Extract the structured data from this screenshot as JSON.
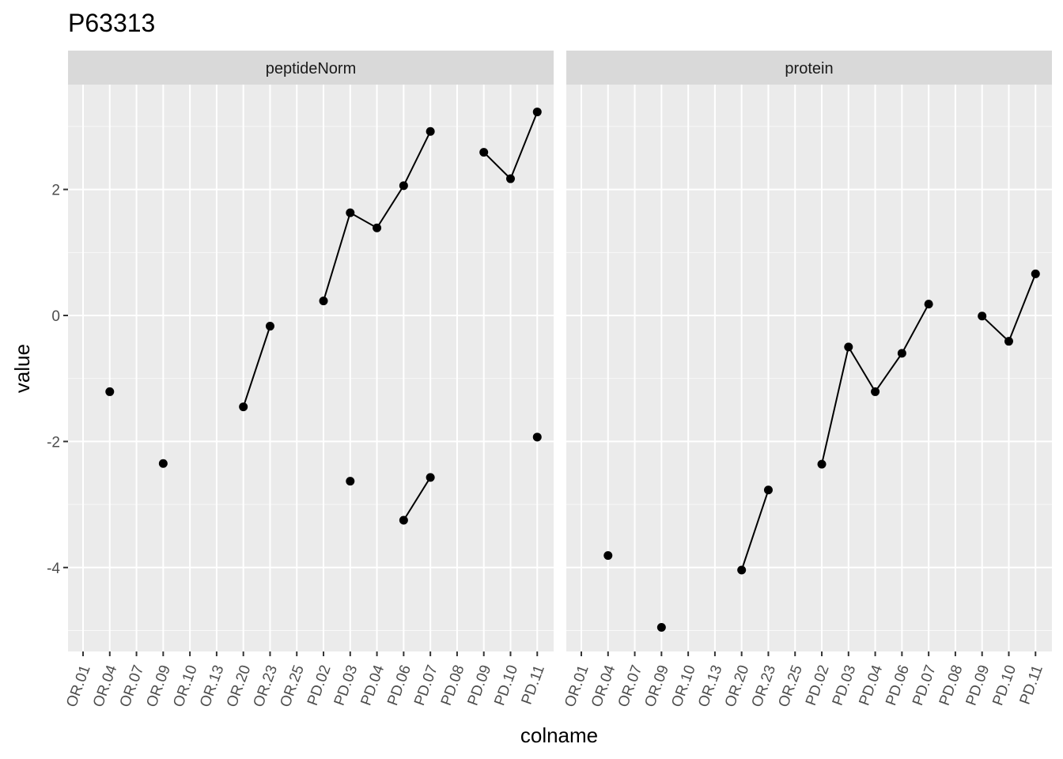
{
  "chart_data": {
    "type": "line",
    "title": "P63313",
    "xlabel": "colname",
    "ylabel": "value",
    "ylim": [
      -5.3,
      3.7
    ],
    "y_ticks": [
      -4,
      -2,
      0,
      2
    ],
    "y_tick_labels": [
      "-4",
      "-2",
      "0",
      "2"
    ],
    "grid": true,
    "categories": [
      "OR.01",
      "OR.04",
      "OR.07",
      "OR.09",
      "OR.10",
      "OR.13",
      "OR.20",
      "OR.23",
      "OR.25",
      "PD.02",
      "PD.03",
      "PD.04",
      "PD.06",
      "PD.07",
      "PD.08",
      "PD.09",
      "PD.10",
      "PD.11"
    ],
    "panels": [
      {
        "name": "peptideNorm",
        "segments": [
          [
            [
              "OR.04",
              -1.21
            ]
          ],
          [
            [
              "OR.09",
              -2.35
            ]
          ],
          [
            [
              "OR.20",
              -1.45
            ],
            [
              "OR.23",
              -0.17
            ]
          ],
          [
            [
              "PD.02",
              0.23
            ],
            [
              "PD.03",
              1.63
            ],
            [
              "PD.04",
              1.39
            ],
            [
              "PD.06",
              2.06
            ],
            [
              "PD.07",
              2.92
            ]
          ],
          [
            [
              "PD.09",
              2.59
            ],
            [
              "PD.10",
              2.17
            ],
            [
              "PD.11",
              3.23
            ]
          ],
          [
            [
              "PD.03",
              -2.63
            ]
          ],
          [
            [
              "PD.06",
              -3.25
            ],
            [
              "PD.07",
              -2.57
            ]
          ],
          [
            [
              "PD.11",
              -1.93
            ]
          ]
        ]
      },
      {
        "name": "protein",
        "segments": [
          [
            [
              "OR.04",
              -3.81
            ]
          ],
          [
            [
              "OR.09",
              -4.95
            ]
          ],
          [
            [
              "OR.20",
              -4.04
            ],
            [
              "OR.23",
              -2.77
            ]
          ],
          [
            [
              "PD.02",
              -2.36
            ],
            [
              "PD.03",
              -0.5
            ],
            [
              "PD.04",
              -1.21
            ],
            [
              "PD.06",
              -0.6
            ],
            [
              "PD.07",
              0.18
            ]
          ],
          [
            [
              "PD.09",
              -0.01
            ],
            [
              "PD.10",
              -0.41
            ],
            [
              "PD.11",
              0.66
            ]
          ]
        ]
      }
    ],
    "colors": {
      "panel_bg": "#ebebeb",
      "strip_bg": "#d9d9d9",
      "grid_major": "#ffffff",
      "points": "#000000",
      "tick_text": "#4d4d4d"
    }
  }
}
